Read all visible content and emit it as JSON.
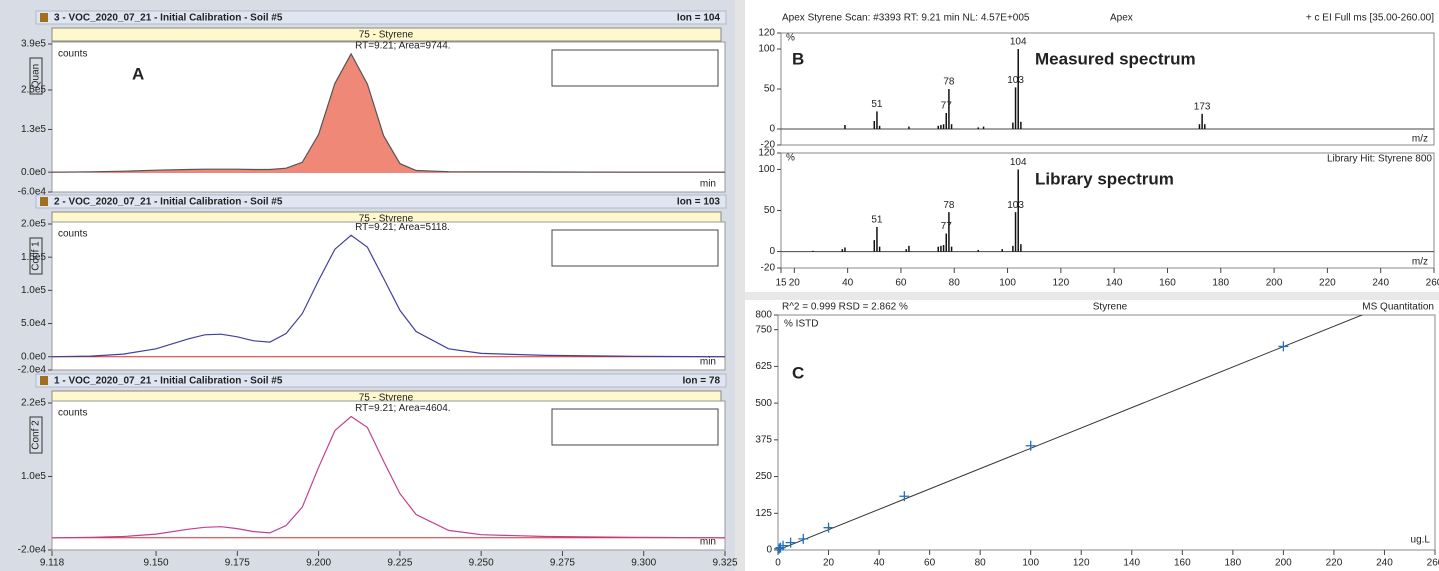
{
  "left_panel": {
    "label": "A",
    "xlim": [
      9.118,
      9.325
    ],
    "xticks": [
      {
        "value": 9.118,
        "label": "9.118"
      },
      {
        "value": 9.15,
        "label": "9.150"
      },
      {
        "value": 9.175,
        "label": "9.175"
      },
      {
        "value": 9.2,
        "label": "9.200"
      },
      {
        "value": 9.225,
        "label": "9.225"
      },
      {
        "value": 9.25,
        "label": "9.250"
      },
      {
        "value": 9.275,
        "label": "9.275"
      },
      {
        "value": 9.3,
        "label": "9.300"
      },
      {
        "value": 9.325,
        "label": "9.325"
      }
    ],
    "x": [
      9.118,
      9.13,
      9.14,
      9.15,
      9.16,
      9.165,
      9.17,
      9.175,
      9.18,
      9.185,
      9.19,
      9.195,
      9.2,
      9.205,
      9.21,
      9.215,
      9.22,
      9.225,
      9.23,
      9.24,
      9.25,
      9.27,
      9.3,
      9.325
    ],
    "traces": [
      {
        "header": "3 - VOC_2020_07_21 - Initial Calibration - Soil #5",
        "ion": "Ion = 104",
        "compound": "75 - Styrene",
        "role": "Quan",
        "annotation": "RT=9.21; Area=9744.",
        "y_unit": "counts",
        "x_unit": "min",
        "color": "#555555",
        "fill": "#f08878",
        "ylim": [
          -60400,
          390000
        ],
        "yticks": [
          {
            "value": 390000,
            "label": "3.9e5"
          },
          {
            "value": 250000,
            "label": "2.5e5"
          },
          {
            "value": 130000,
            "label": "1.3e5"
          },
          {
            "value": 0,
            "label": "0.0e0"
          },
          {
            "value": -60400,
            "label": "-6.0e4"
          }
        ],
        "values": [
          0,
          1000,
          3000,
          6000,
          8000,
          9000,
          9000,
          9000,
          8000,
          8000,
          12000,
          30000,
          115000,
          270000,
          360000,
          268000,
          111000,
          26000,
          5000,
          1500,
          1000,
          500,
          0,
          0
        ]
      },
      {
        "header": "2 - VOC_2020_07_21 - Initial Calibration - Soil #5",
        "ion": "Ion = 103",
        "compound": "75 - Styrene",
        "role": "Conf 1",
        "annotation": "RT=9.21; Area=5118.",
        "y_unit": "counts",
        "x_unit": "min",
        "color": "#4040a0",
        "ylim": [
          -20000,
          200000
        ],
        "yticks": [
          {
            "value": 200000,
            "label": "2.0e5"
          },
          {
            "value": 150000,
            "label": "1.5e5"
          },
          {
            "value": 100000,
            "label": "1.0e5"
          },
          {
            "value": 50000,
            "label": "5.0e4"
          },
          {
            "value": 0,
            "label": "0.0e0"
          },
          {
            "value": -20000,
            "label": "-2.0e4"
          }
        ],
        "values": [
          0,
          1000,
          4000,
          12000,
          27000,
          33000,
          34000,
          30000,
          24000,
          22000,
          35000,
          65000,
          115000,
          162000,
          183000,
          165000,
          118000,
          70000,
          38000,
          12000,
          5000,
          2000,
          500,
          0
        ]
      },
      {
        "header": "1 - VOC_2020_07_21 - Initial Calibration - Soil #5",
        "ion": "Ion = 78",
        "compound": "75 - Styrene",
        "role": "Conf 2",
        "annotation": "RT=9.21; Area=4604.",
        "y_unit": "counts",
        "x_unit": "min",
        "color": "#c04090",
        "ylim": [
          -20000,
          220000
        ],
        "yticks": [
          {
            "value": 220000,
            "label": "2.2e5"
          },
          {
            "value": 100000,
            "label": "1.0e5"
          },
          {
            "value": -20000,
            "label": "-2.0e4"
          }
        ],
        "values": [
          0,
          500,
          2000,
          6000,
          14000,
          17000,
          18000,
          15000,
          10000,
          8000,
          20000,
          50000,
          115000,
          175000,
          198000,
          180000,
          125000,
          72000,
          38000,
          12000,
          5000,
          2000,
          500,
          0
        ]
      }
    ]
  },
  "spectra": {
    "label": "B",
    "scan": "Apex Styrene Scan: #3393  RT: 9.21 min  NL: 4.57E+005",
    "apex": "Apex",
    "filter": "+ c EI Full ms [35.00-260.00]",
    "xlim": [
      15,
      260
    ],
    "xticks": [
      15,
      20,
      40,
      60,
      80,
      100,
      120,
      140,
      160,
      180,
      200,
      220,
      240,
      260
    ],
    "plots": [
      {
        "caption": "Measured spectrum",
        "y_unit": "%",
        "x_unit": "m/z",
        "ylim": [
          -20,
          120
        ],
        "yticks": [
          120,
          100,
          50,
          0,
          -20
        ],
        "mz": [
          39,
          50,
          51,
          52,
          63,
          74,
          75,
          76,
          77,
          78,
          79,
          89,
          91,
          102,
          103,
          104,
          105,
          172,
          173,
          174
        ],
        "values": [
          5,
          10,
          22,
          4,
          3,
          4,
          5,
          6,
          20,
          50,
          6,
          2,
          3,
          8,
          52,
          100,
          9,
          6,
          19,
          6
        ],
        "labeled": [
          51,
          77,
          78,
          103,
          104,
          173
        ]
      },
      {
        "caption": "Library spectrum",
        "hit": "Library Hit: Styrene 800",
        "y_unit": "%",
        "x_unit": "m/z",
        "ylim": [
          -20,
          120
        ],
        "yticks": [
          120,
          100,
          50,
          0,
          -20
        ],
        "mz": [
          27,
          38,
          39,
          50,
          51,
          52,
          62,
          63,
          74,
          75,
          76,
          77,
          78,
          79,
          89,
          98,
          102,
          103,
          104,
          105
        ],
        "values": [
          1,
          3,
          5,
          14,
          30,
          6,
          3,
          7,
          6,
          7,
          8,
          22,
          48,
          6,
          2,
          3,
          7,
          48,
          100,
          9
        ],
        "labeled": [
          51,
          77,
          78,
          103,
          104
        ]
      }
    ]
  },
  "calibration": {
    "label": "C",
    "stats": "R^2 = 0.999   RSD = 2.862 %",
    "compound": "Styrene",
    "method": "MS Quantitation",
    "y_unit": "% ISTD",
    "x_unit": "ug.L",
    "xlim": [
      0,
      260
    ],
    "xticks": [
      0,
      20,
      40,
      60,
      80,
      100,
      120,
      140,
      160,
      180,
      200,
      220,
      240,
      260
    ],
    "ylim": [
      0,
      800
    ],
    "yticks": [
      800,
      750,
      625,
      500,
      375,
      250,
      125,
      0
    ],
    "x": [
      0.5,
      1,
      2,
      5,
      10,
      20,
      50,
      100,
      200
    ],
    "y": [
      5,
      8,
      15,
      25,
      38,
      76,
      183,
      355,
      693
    ],
    "fit_x": [
      0,
      260
    ],
    "fit_y": [
      0,
      900
    ]
  }
}
